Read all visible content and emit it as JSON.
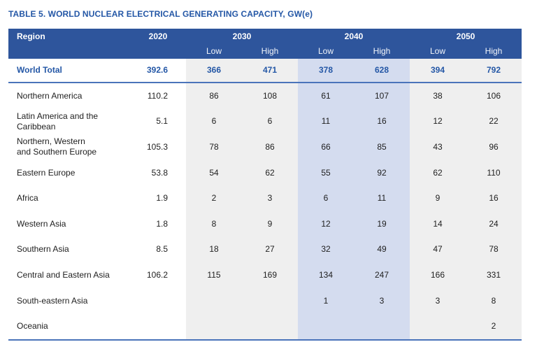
{
  "title": "TABLE 5. WORLD NUCLEAR ELECTRICAL GENERATING CAPACITY, GW(e)",
  "table": {
    "headers": {
      "region": "Region",
      "y2020": "2020",
      "y2030": "2030",
      "y2040": "2040",
      "y2050": "2050",
      "low": "Low",
      "high": "High"
    },
    "world_total": {
      "region": "World Total",
      "y2020": "392.6",
      "values": [
        "366",
        "471",
        "378",
        "628",
        "394",
        "792"
      ]
    },
    "rows": [
      {
        "region": "Northern America",
        "y2020": "110.2",
        "values": [
          "86",
          "108",
          "61",
          "107",
          "38",
          "106"
        ]
      },
      {
        "region": "Latin America and the\nCaribbean",
        "y2020": "5.1",
        "values": [
          "6",
          "6",
          "11",
          "16",
          "12",
          "22"
        ]
      },
      {
        "region": "Northern, Western\nand Southern Europe",
        "y2020": "105.3",
        "values": [
          "78",
          "86",
          "66",
          "85",
          "43",
          "96"
        ]
      },
      {
        "region": "Eastern Europe",
        "y2020": "53.8",
        "values": [
          "54",
          "62",
          "55",
          "92",
          "62",
          "110"
        ]
      },
      {
        "region": "Africa",
        "y2020": "1.9",
        "values": [
          "2",
          "3",
          "6",
          "11",
          "9",
          "16"
        ]
      },
      {
        "region": "Western Asia",
        "y2020": "1.8",
        "values": [
          "8",
          "9",
          "12",
          "19",
          "14",
          "24"
        ]
      },
      {
        "region": "Southern Asia",
        "y2020": "8.5",
        "values": [
          "18",
          "27",
          "32",
          "49",
          "47",
          "78"
        ]
      },
      {
        "region": "Central and Eastern Asia",
        "y2020": "106.2",
        "values": [
          "115",
          "169",
          "134",
          "247",
          "166",
          "331"
        ]
      },
      {
        "region": "South-eastern Asia",
        "y2020": "",
        "values": [
          "",
          "",
          "1",
          "3",
          "3",
          "8"
        ]
      },
      {
        "region": "Oceania",
        "y2020": "",
        "values": [
          "",
          "",
          "",
          "",
          "",
          "2"
        ]
      }
    ],
    "colors": {
      "header_bg": "#2E559C",
      "accent_text": "#2457A6",
      "band_gray": "#EFEFEF",
      "band_blue": "#D4DCEF",
      "rule_blue": "#4A74BA"
    }
  }
}
